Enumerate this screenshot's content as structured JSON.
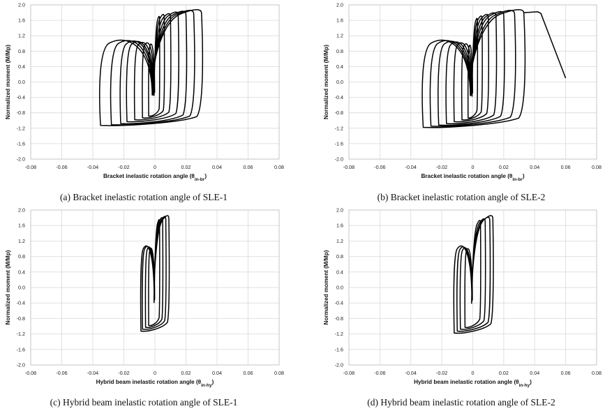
{
  "chart_data": [
    {
      "type": "line",
      "panel": "a",
      "caption": "(a) Bracket inelastic rotation angle of SLE-1",
      "xlabel": "Bracket inelastic rotation angle (θin-br)",
      "xlabel_main": "Bracket inelastic rotation angle (θ",
      "xlabel_sub": "in-br",
      "xlabel_end": ")",
      "ylabel": "Normalized moment (M/Mp)",
      "xlim": [
        -0.08,
        0.08
      ],
      "ylim": [
        -2.0,
        2.0
      ],
      "x_ticks": [
        "-0.08",
        "-0.06",
        "-0.04",
        "-0.02",
        "0",
        "0.02",
        "0.04",
        "0.06",
        "0.08"
      ],
      "y_ticks": [
        "-2.0",
        "-1.6",
        "-1.2",
        "-0.8",
        "-0.4",
        "0.0",
        "0.4",
        "0.8",
        "1.2",
        "1.6",
        "2.0"
      ],
      "series": [
        {
          "name": "hysteresis",
          "x_amplitudes": [
            0.003,
            0.006,
            0.01,
            0.015,
            0.02,
            0.025,
            0.03
          ],
          "neg_x_amplitudes": [
            -0.004,
            -0.008,
            -0.013,
            -0.018,
            -0.022,
            -0.028,
            -0.035
          ],
          "pos_peak_moments": [
            1.65,
            1.7,
            1.72,
            1.76,
            1.78,
            1.8,
            1.82
          ],
          "neg_peak_moments": [
            -0.9,
            -0.95,
            -1.0,
            -1.05,
            -1.1,
            -1.13,
            -1.15
          ]
        }
      ]
    },
    {
      "type": "line",
      "panel": "b",
      "caption": "(b) Bracket inelastic rotation angle of SLE-2",
      "xlabel": "Bracket inelastic rotation angle (θin-br)",
      "xlabel_main": "Bracket inelastic rotation angle (θ",
      "xlabel_sub": "in-br",
      "xlabel_end": ")",
      "ylabel": "Normalized moment (M/Mp)",
      "xlim": [
        -0.08,
        0.08
      ],
      "ylim": [
        -2.0,
        2.0
      ],
      "x_ticks": [
        "-0.08",
        "-0.06",
        "-0.04",
        "-0.02",
        "0",
        "0.02",
        "0.04",
        "0.06",
        "0.08"
      ],
      "y_ticks": [
        "-2.0",
        "-1.6",
        "-1.2",
        "-0.8",
        "-0.4",
        "0.0",
        "0.4",
        "0.8",
        "1.2",
        "1.6",
        "2.0"
      ],
      "series": [
        {
          "name": "hysteresis",
          "x_amplitudes": [
            0.003,
            0.006,
            0.01,
            0.015,
            0.02,
            0.027,
            0.033
          ],
          "neg_x_amplitudes": [
            -0.003,
            -0.007,
            -0.012,
            -0.017,
            -0.022,
            -0.027,
            -0.032
          ],
          "pos_peak_moments": [
            1.6,
            1.66,
            1.7,
            1.74,
            1.77,
            1.8,
            1.82
          ],
          "neg_peak_moments": [
            -0.95,
            -1.0,
            -1.05,
            -1.1,
            -1.14,
            -1.17,
            -1.2
          ],
          "final_excursion": {
            "x": [
              0.033,
              0.042,
              0.044,
              0.06
            ],
            "y": [
              1.8,
              1.82,
              1.78,
              0.1
            ]
          }
        }
      ]
    },
    {
      "type": "line",
      "panel": "c",
      "caption": "(c) Hybrid beam inelastic rotation angle of SLE-1",
      "xlabel": "Hybrid beam inelastic rotation angle (θin-hy)",
      "xlabel_main": "Hybrid beam inelastic rotation angle (θ",
      "xlabel_sub": "in-hy",
      "xlabel_end": ")",
      "ylabel": "Normalized moment (M/Mp)",
      "xlim": [
        -0.08,
        0.08
      ],
      "ylim": [
        -2.0,
        2.0
      ],
      "x_ticks": [
        "-0.08",
        "-0.06",
        "-0.04",
        "-0.02",
        "0",
        "0.02",
        "0.04",
        "0.06",
        "0.08"
      ],
      "y_ticks": [
        "-2.0",
        "-1.6",
        "-1.2",
        "-0.8",
        "-0.4",
        "0.0",
        "0.4",
        "0.8",
        "1.2",
        "1.6",
        "2.0"
      ],
      "series": [
        {
          "name": "hysteresis",
          "x_amplitudes": [
            0.003,
            0.005,
            0.007,
            0.009
          ],
          "neg_x_amplitudes": [
            -0.004,
            -0.006,
            -0.008,
            -0.009
          ],
          "pos_peak_moments": [
            1.7,
            1.75,
            1.78,
            1.8
          ],
          "neg_peak_moments": [
            -1.0,
            -1.05,
            -1.1,
            -1.15
          ]
        }
      ]
    },
    {
      "type": "line",
      "panel": "d",
      "caption": "(d) Hybrid beam inelastic rotation angle of SLE-2",
      "xlabel": "Hybrid beam inelastic rotation angle (θin-hy)",
      "xlabel_main": "Hybrid beam inelastic rotation angle (θ",
      "xlabel_sub": "in-hy",
      "xlabel_end": ")",
      "ylabel": "Normalized moment (M/Mp)",
      "xlim": [
        -0.08,
        0.08
      ],
      "ylim": [
        -2.0,
        2.0
      ],
      "x_ticks": [
        "-0.08",
        "-0.06",
        "-0.04",
        "-0.02",
        "0",
        "0.02",
        "0.04",
        "0.06",
        "0.08"
      ],
      "y_ticks": [
        "-2.0",
        "-1.6",
        "-1.2",
        "-0.8",
        "-0.4",
        "0.0",
        "0.4",
        "0.8",
        "1.2",
        "1.6",
        "2.0"
      ],
      "series": [
        {
          "name": "hysteresis",
          "x_amplitudes": [
            0.005,
            0.008,
            0.011,
            0.013
          ],
          "neg_x_amplitudes": [
            -0.005,
            -0.008,
            -0.01,
            -0.012
          ],
          "pos_peak_moments": [
            1.68,
            1.72,
            1.76,
            1.8
          ],
          "neg_peak_moments": [
            -1.05,
            -1.1,
            -1.15,
            -1.2
          ]
        }
      ]
    }
  ]
}
